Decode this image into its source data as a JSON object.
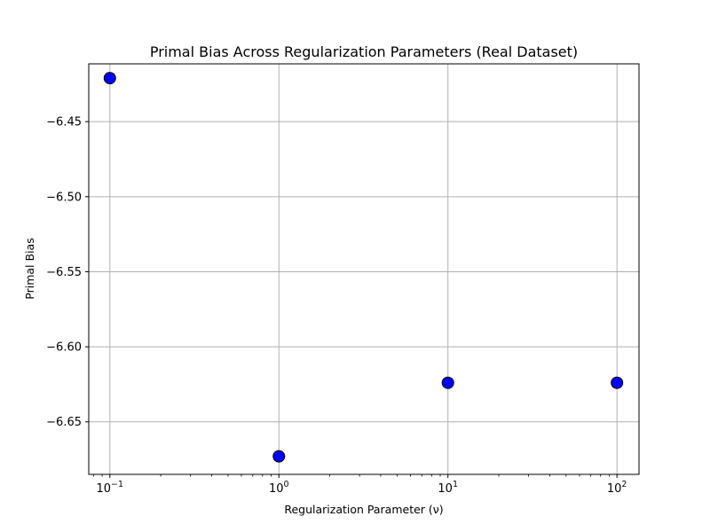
{
  "chart_data": {
    "type": "scatter",
    "title": "Primal Bias Across Regularization Parameters (Real Dataset)",
    "xlabel": "Regularization Parameter (ν)",
    "ylabel": "Primal Bias",
    "x_scale": "log",
    "xlim": [
      0.075,
      135
    ],
    "ylim": [
      -6.685,
      -6.4115
    ],
    "x_ticks": [
      {
        "value": 0.1,
        "base": "10",
        "exponent": "−1"
      },
      {
        "value": 1,
        "base": "10",
        "exponent": "0"
      },
      {
        "value": 10,
        "base": "10",
        "exponent": "1"
      },
      {
        "value": 100,
        "base": "10",
        "exponent": "2"
      }
    ],
    "y_ticks": [
      {
        "value": -6.45,
        "label": "−6.45"
      },
      {
        "value": -6.5,
        "label": "−6.50"
      },
      {
        "value": -6.55,
        "label": "−6.55"
      },
      {
        "value": -6.6,
        "label": "−6.60"
      },
      {
        "value": -6.65,
        "label": "−6.65"
      }
    ],
    "grid": true,
    "marker_color": "#0000ff",
    "marker_edge_color": "#000000",
    "points": [
      {
        "x": 0.1,
        "y": -6.421
      },
      {
        "x": 1,
        "y": -6.673
      },
      {
        "x": 10,
        "y": -6.624
      },
      {
        "x": 100,
        "y": -6.624
      }
    ]
  }
}
